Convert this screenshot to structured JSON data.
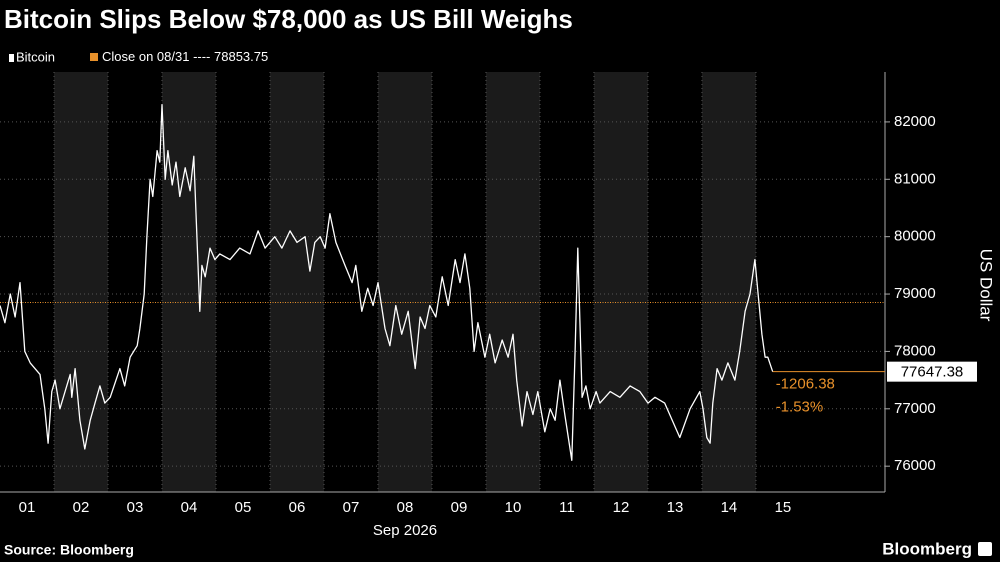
{
  "chart_data": {
    "type": "line",
    "title": "Bitcoin Slips Below $78,000 as US Bill Weighs",
    "source": "Source: Bloomberg",
    "brand": "Bloomberg",
    "xlabel": "Sep 2026",
    "ylabel": "US Dollar",
    "x": [
      1.0,
      1.09,
      1.19,
      1.28,
      1.37,
      1.46,
      1.56,
      1.74,
      1.83,
      1.89,
      1.96,
      2.02,
      2.11,
      2.3,
      2.33,
      2.39,
      2.48,
      2.57,
      2.67,
      2.76,
      2.85,
      2.94,
      3.04,
      3.22,
      3.31,
      3.41,
      3.54,
      3.59,
      3.67,
      3.72,
      3.78,
      3.83,
      3.91,
      3.96,
      4.0,
      4.06,
      4.11,
      4.19,
      4.26,
      4.33,
      4.43,
      4.52,
      4.59,
      4.7,
      4.74,
      4.8,
      4.89,
      4.98,
      5.07,
      5.26,
      5.44,
      5.63,
      5.78,
      5.91,
      6.09,
      6.22,
      6.37,
      6.5,
      6.65,
      6.74,
      6.83,
      6.93,
      7.02,
      7.11,
      7.22,
      7.39,
      7.52,
      7.59,
      7.7,
      7.81,
      7.91,
      8.0,
      8.13,
      8.22,
      8.33,
      8.44,
      8.56,
      8.69,
      8.78,
      8.87,
      8.96,
      9.07,
      9.19,
      9.3,
      9.43,
      9.52,
      9.61,
      9.7,
      9.78,
      9.85,
      9.98,
      10.07,
      10.17,
      10.3,
      10.41,
      10.5,
      10.57,
      10.67,
      10.76,
      10.87,
      10.96,
      11.09,
      11.19,
      11.28,
      11.37,
      11.46,
      11.59,
      11.65,
      11.7,
      11.78,
      11.85,
      11.93,
      12.04,
      12.11,
      12.3,
      12.48,
      12.67,
      12.85,
      13.0,
      13.13,
      13.31,
      13.59,
      13.78,
      13.96,
      14.02,
      14.09,
      14.15,
      14.2,
      14.28,
      14.37,
      14.48,
      14.61,
      14.7,
      14.8,
      14.89,
      14.98,
      15.04,
      15.11,
      15.17,
      15.22,
      15.31
    ],
    "series": [
      {
        "name": "Bitcoin",
        "color": "#ffffff",
        "values": [
          78800,
          78500,
          79000,
          78600,
          79200,
          78000,
          77800,
          77600,
          77000,
          76400,
          77300,
          77500,
          77000,
          77600,
          77200,
          77700,
          76800,
          76300,
          76800,
          77100,
          77400,
          77100,
          77200,
          77700,
          77400,
          77900,
          78100,
          78400,
          79000,
          80000,
          81000,
          80700,
          81500,
          81300,
          82300,
          81000,
          81500,
          80900,
          81300,
          80700,
          81200,
          80800,
          81400,
          78700,
          79500,
          79300,
          79800,
          79600,
          79700,
          79600,
          79800,
          79700,
          80100,
          79800,
          80000,
          79800,
          80100,
          79900,
          80000,
          79400,
          79900,
          80000,
          79800,
          80400,
          79900,
          79500,
          79200,
          79500,
          78700,
          79100,
          78800,
          79200,
          78400,
          78100,
          78800,
          78300,
          78700,
          77700,
          78600,
          78400,
          78800,
          78600,
          79300,
          78800,
          79600,
          79200,
          79700,
          79100,
          78000,
          78500,
          77900,
          78300,
          77800,
          78200,
          77900,
          78300,
          77500,
          76700,
          77300,
          76900,
          77300,
          76600,
          77000,
          76800,
          77500,
          76900,
          76100,
          78000,
          79800,
          77200,
          77400,
          77000,
          77300,
          77100,
          77300,
          77200,
          77400,
          77300,
          77100,
          77200,
          77100,
          76500,
          77000,
          77300,
          77000,
          76500,
          76400,
          77100,
          77700,
          77500,
          77800,
          77500,
          78000,
          78700,
          79000,
          79600,
          79000,
          78300,
          77900,
          77900,
          77647.38
        ]
      }
    ],
    "reference": {
      "label": "Close on 08/31 ----",
      "value": 78853.75,
      "color": "#e8912b"
    },
    "change": -1206.38,
    "change_pct": {
      "value": -1.53,
      "label": "-1.53%"
    },
    "xlim": [
      1,
      17.39
    ],
    "xticks": [
      {
        "value": 1.5,
        "label": "01"
      },
      {
        "value": 2.5,
        "label": "02"
      },
      {
        "value": 3.5,
        "label": "03"
      },
      {
        "value": 4.5,
        "label": "04"
      },
      {
        "value": 5.5,
        "label": "05"
      },
      {
        "value": 6.5,
        "label": "06"
      },
      {
        "value": 7.5,
        "label": "07"
      },
      {
        "value": 8.5,
        "label": "08"
      },
      {
        "value": 9.5,
        "label": "09"
      },
      {
        "value": 10.5,
        "label": "10"
      },
      {
        "value": 11.5,
        "label": "11"
      },
      {
        "value": 12.5,
        "label": "12"
      },
      {
        "value": 13.5,
        "label": "13"
      },
      {
        "value": 14.5,
        "label": "14"
      },
      {
        "value": 15.5,
        "label": "15"
      }
    ],
    "ylim": [
      75550,
      82870
    ],
    "yticks": [
      76000,
      77000,
      78000,
      79000,
      80000,
      81000,
      82000
    ],
    "grid": true
  }
}
